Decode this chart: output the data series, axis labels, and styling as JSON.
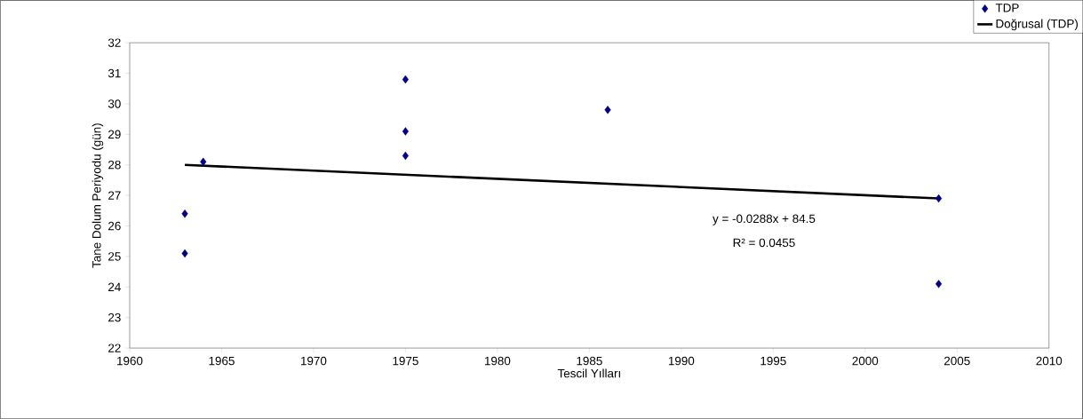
{
  "chart_data": {
    "type": "scatter",
    "xlabel": "Tescil Yılları",
    "ylabel": "Tane Dolum Periyodu (gün)",
    "xlim": [
      1960,
      2010
    ],
    "ylim": [
      22,
      32
    ],
    "xticks": [
      1960,
      1965,
      1970,
      1975,
      1980,
      1985,
      1990,
      1995,
      2000,
      2005,
      2010
    ],
    "yticks": [
      22,
      23,
      24,
      25,
      26,
      27,
      28,
      29,
      30,
      31,
      32
    ],
    "legend": "top right",
    "marker": "diamond",
    "annotations": [
      "y = -0.0288x + 84.5",
      "R² = 0.0455"
    ],
    "series": [
      {
        "name": "TDP",
        "color": "#000080",
        "x": [
          1963,
          1963,
          1964,
          1975,
          1975,
          1975,
          1986,
          2004,
          2004
        ],
        "values": [
          26.4,
          25.1,
          28.1,
          30.8,
          29.1,
          28.3,
          29.8,
          26.9,
          24.1
        ]
      },
      {
        "name": "Doğrusal (TDP)",
        "type": "line",
        "marker": "none",
        "color": "#000000",
        "x": [
          1963,
          2004
        ],
        "values": [
          28.0,
          26.9
        ]
      }
    ]
  }
}
